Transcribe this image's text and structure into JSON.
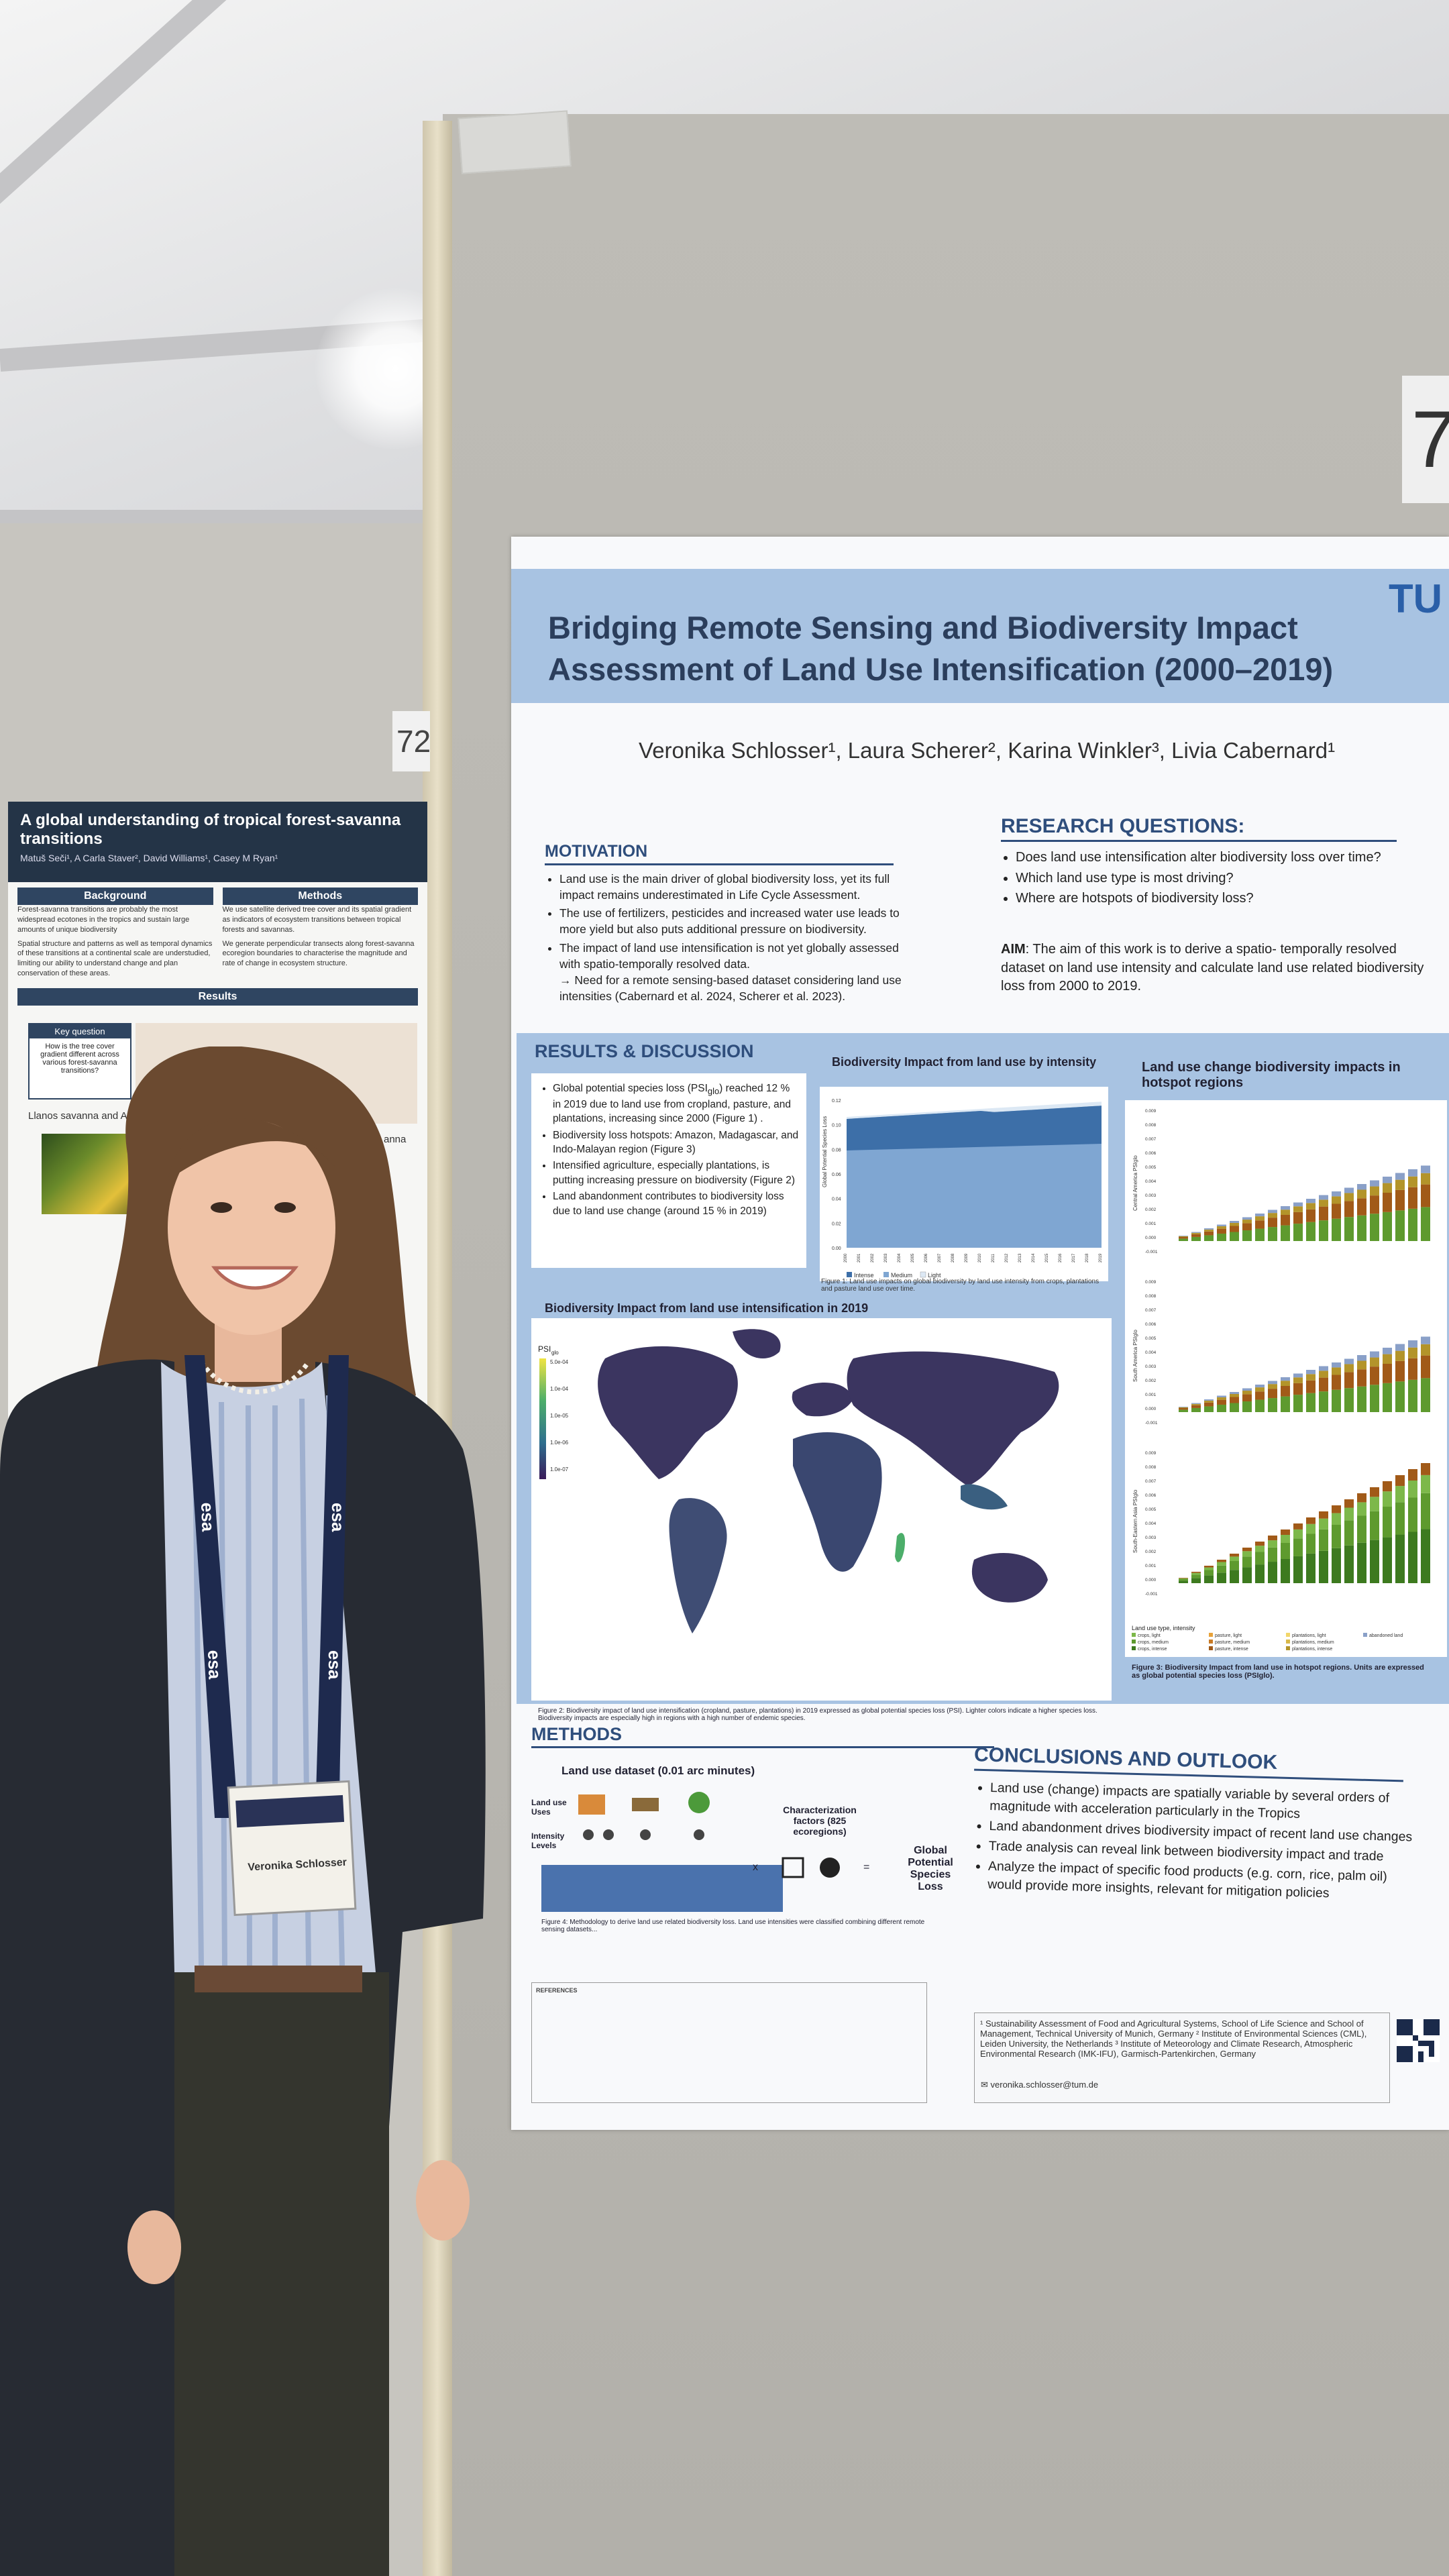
{
  "scene": {
    "booth_number_right": "7",
    "booth_number_left": "72"
  },
  "left_poster": {
    "title": "A global understanding of tropical forest-savanna transitions",
    "authors": "Matuš Seči¹, A Carla Staver², David Williams¹, Casey M Ryan¹",
    "background_header": "Background",
    "methods_header": "Methods",
    "background_text_1": "Forest-savanna transitions are probably the most widespread ecotones in the tropics and sustain large amounts of unique biodiversity",
    "background_text_2": "Spatial structure and patterns as well as temporal dynamics of these transitions at a continental scale are understudied, limiting our ability to understand change and plan conservation of these areas.",
    "methods_text_1": "We use satellite derived tree cover and its spatial gradient as indicators of ecosystem transitions between tropical forests and savannas.",
    "methods_text_2": "We generate perpendicular transects along forest-savanna ecoregion boundaries to characterise the magnitude and rate of change in ecosystem structure.",
    "results_header": "Results",
    "key_question_header": "Key question",
    "key_question": "How is the tree cover gradient different across various forest-savanna transitions?",
    "llanos_label": "Llanos savanna and Amazon rain",
    "savanna_label": "anna"
  },
  "badge": {
    "lanyard_text": "esa",
    "name": "Veronika Schlosser"
  },
  "poster": {
    "logo": "TU",
    "title_line1": "Bridging Remote Sensing and Biodiversity Impact",
    "title_line2": "Assessment of Land Use Intensification (2000–2019)",
    "authors": "Veronika Schlosser¹, Laura Scherer², Karina Winkler³, Livia Cabernard¹",
    "motivation": {
      "heading": "MOTIVATION",
      "b1": "Land use is the main driver of global biodiversity loss, yet its full impact remains underestimated in Life Cycle Assessment.",
      "b2": "The use of fertilizers, pesticides and increased water use leads to more yield but also puts additional pressure on biodiversity.",
      "b3": "The impact of land use intensification is not yet globally assessed with spatio-temporally resolved data.",
      "b3_need": "→ Need for a remote sensing-based dataset considering land use intensities (Cabernard et al. 2024, Scherer et al. 2023)."
    },
    "research_questions": {
      "heading": "RESEARCH QUESTIONS:",
      "q1": "Does land use intensification alter biodiversity loss over time?",
      "q2": "Which land use type is most driving?",
      "q3": "Where are hotspots of biodiversity loss?",
      "aim_label": "AIM",
      "aim": ": The aim of this work is to derive a spatio- temporally resolved dataset on land use intensity and calculate land use related biodiversity loss from 2000 to 2019."
    },
    "results": {
      "heading": "RESULTS & DISCUSSION",
      "b1": "Global potential species loss (PSI",
      "b1_sub": "glo",
      "b1_rest": ") reached 12 % in 2019 due to land use from cropland, pasture, and plantations, increasing since 2000 (Figure 1) .",
      "b2": "Biodiversity loss hotspots: Amazon, Madagascar, and Indo-Malayan region (Figure 3)",
      "b3": "Intensified agriculture, especially plantations, is putting increasing pressure on biodiversity (Figure 2)",
      "b4": "Land abandonment contributes to biodiversity loss due to land use change (around 15 % in 2019)"
    },
    "fig1": {
      "title": "Biodiversity Impact from land use by intensity",
      "ylabel": "Global Potential Species Loss",
      "yticks": [
        "0.12",
        "0.10",
        "0.08",
        "0.06",
        "0.04",
        "0.02",
        "0.00"
      ],
      "xticks": [
        "2000",
        "2001",
        "2002",
        "2003",
        "2004",
        "2005",
        "2006",
        "2007",
        "2008",
        "2009",
        "2010",
        "2011",
        "2012",
        "2013",
        "2014",
        "2015",
        "2016",
        "2017",
        "2018",
        "2019"
      ],
      "legend": [
        "Intense",
        "Medium",
        "Light"
      ],
      "caption": "Figure 1: Land use impacts on global biodiversity by land use intensity from crops, plantations and pasture land use over time.",
      "colors": {
        "intense": "#3d6fa8",
        "medium": "#7fa6d2",
        "light": "#dce8f4"
      }
    },
    "fig2": {
      "title": "Biodiversity Impact from land use intensification in 2019",
      "legend_title": "PSI",
      "legend_sub": "glo",
      "legend_ticks": [
        "5.0e-04",
        "1.0e-04",
        "1.0e-05",
        "1.0e-06",
        "1.0e-07"
      ],
      "caption": "Figure 2: Biodiversity impact of land use intensification (cropland, pasture, plantations) in 2019 expressed as global potential species loss (PSI). Lighter colors indicate a higher species loss. Biodiversity impacts are especially high in regions with a high number of endemic species."
    },
    "fig3": {
      "title": "Land use change biodiversity impacts in hotspot regions",
      "panels": [
        {
          "label": "Central America PSIglo",
          "yticks": [
            "0.009",
            "0.008",
            "0.007",
            "0.006",
            "0.005",
            "0.004",
            "0.003",
            "0.002",
            "0.001",
            "0.000",
            "-0.001"
          ]
        },
        {
          "label": "South America PSIglo",
          "yticks": [
            "0.009",
            "0.008",
            "0.007",
            "0.006",
            "0.005",
            "0.004",
            "0.003",
            "0.002",
            "0.001",
            "0.000",
            "-0.001"
          ]
        },
        {
          "label": "South-Eastern Asia PSIglo",
          "yticks": [
            "0.009",
            "0.008",
            "0.007",
            "0.006",
            "0.005",
            "0.004",
            "0.003",
            "0.002",
            "0.001",
            "0.000",
            "-0.001"
          ]
        }
      ],
      "legend_title": "Land use type, intensity",
      "legend": [
        "crops, light",
        "crops, medium",
        "crops, intense",
        "pasture, light",
        "pasture, medium",
        "pasture, intense",
        "plantations, light",
        "plantations, medium",
        "plantations, intense",
        "abandoned land"
      ],
      "caption": "Figure 3: Biodiversity Impact from land use in hotspot regions. Units are expressed as global potential species loss (PSIglo)."
    },
    "methods": {
      "heading": "METHODS",
      "dataset_label": "Land use dataset (0.01 arc minutes)",
      "row1": "Land use Uses",
      "row2": "Intensity Levels",
      "char_factors": "Characterization factors (825 ecoregions)",
      "times": "x",
      "equals": "=",
      "result": "Global Potential Species Loss",
      "caption": "Figure 4: Methodology to derive land use related biodiversity loss. Land use intensities were classified combining different remote sensing datasets..."
    },
    "conclusions": {
      "heading": "CONCLUSIONS AND OUTLOOK",
      "b1": "Land use (change) impacts are spatially variable by several orders of magnitude with acceleration particularly in the Tropics",
      "b2": "Land abandonment drives biodiversity impact of recent land use changes",
      "b3": "Trade analysis can reveal link between biodiversity impact and trade",
      "b4": "Analyze the impact of specific food products (e.g. corn, rice, palm oil) would provide more insights, relevant for mitigation policies"
    },
    "references_heading": "REFERENCES",
    "affiliations": "¹ Sustainability Assessment of Food and Agricultural Systems, School of Life Science and School of Management, Technical University of Munich, Germany ² Institute of Environmental Sciences (CML), Leiden University, the Netherlands ³ Institute of Meteorology and Climate Research, Atmospheric Environmental Research (IMK-IFU), Garmisch-Partenkirchen, Germany",
    "email": "veronika.schlosser@tum.de"
  }
}
